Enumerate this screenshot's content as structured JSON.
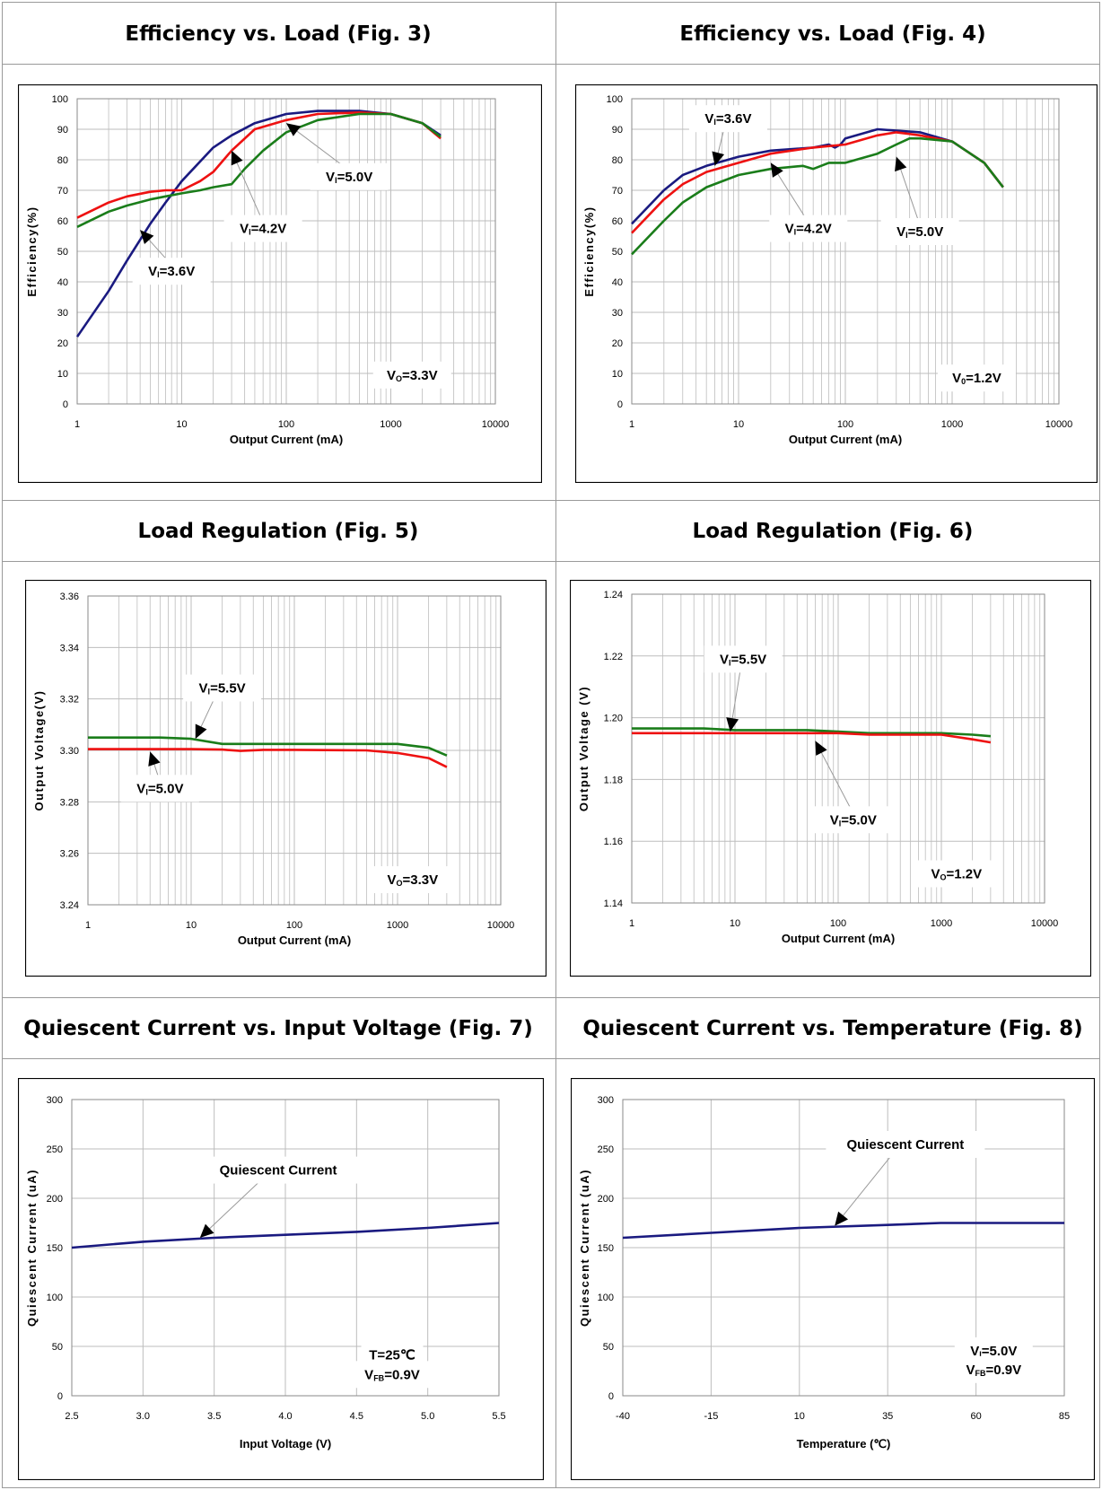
{
  "panels": [
    {
      "title": "Efficiency vs. Load (Fig. 3)"
    },
    {
      "title": "Efficiency vs. Load (Fig. 4)"
    },
    {
      "title": "Load Regulation (Fig. 5)"
    },
    {
      "title": "Load Regulation (Fig. 6)"
    },
    {
      "title": "Quiescent Current vs. Input Voltage (Fig. 7)"
    },
    {
      "title": "Quiescent Current vs. Temperature (Fig. 8)"
    }
  ],
  "colors": {
    "blue": "#1a1a80",
    "red": "#ee1111",
    "green": "#1a7d1a",
    "grid": "#bdbdbd"
  },
  "chart_data": [
    {
      "type": "line",
      "x_scale": "log",
      "xlabel": "Output Current (mA)",
      "ylabel": "Efficiency(%)",
      "xlim": [
        1,
        10000
      ],
      "ylim": [
        0,
        100
      ],
      "xticks": [
        1,
        10,
        100,
        1000,
        10000
      ],
      "xticklabels": [
        "1",
        "10",
        "100",
        "1000",
        "10000"
      ],
      "yticks": [
        0,
        10,
        20,
        30,
        40,
        50,
        60,
        70,
        80,
        90,
        100
      ],
      "yticklabels": [
        "0",
        "10",
        "20",
        "30",
        "40",
        "50",
        "60",
        "70",
        "80",
        "90",
        "100"
      ],
      "grid": true,
      "series": [
        {
          "color": "blue",
          "points": [
            [
              1,
              22
            ],
            [
              2,
              37
            ],
            [
              3,
              47
            ],
            [
              5,
              59
            ],
            [
              7,
              66
            ],
            [
              10,
              73
            ],
            [
              20,
              84
            ],
            [
              30,
              88
            ],
            [
              50,
              92
            ],
            [
              100,
              95
            ],
            [
              200,
              96
            ],
            [
              500,
              96
            ],
            [
              1000,
              95
            ],
            [
              2000,
              92
            ],
            [
              3000,
              88
            ]
          ]
        },
        {
          "color": "red",
          "points": [
            [
              1,
              61
            ],
            [
              2,
              66
            ],
            [
              3,
              68
            ],
            [
              5,
              69.5
            ],
            [
              7,
              70
            ],
            [
              10,
              70
            ],
            [
              15,
              73
            ],
            [
              20,
              76
            ],
            [
              30,
              83
            ],
            [
              50,
              90
            ],
            [
              100,
              93
            ],
            [
              200,
              95
            ],
            [
              500,
              95.5
            ],
            [
              1000,
              95
            ],
            [
              2000,
              92
            ],
            [
              3000,
              87
            ]
          ]
        },
        {
          "color": "green",
          "points": [
            [
              1,
              58
            ],
            [
              2,
              63
            ],
            [
              3,
              65
            ],
            [
              5,
              67
            ],
            [
              7,
              68
            ],
            [
              10,
              69
            ],
            [
              15,
              70
            ],
            [
              20,
              71
            ],
            [
              30,
              72
            ],
            [
              40,
              77
            ],
            [
              60,
              83
            ],
            [
              100,
              89
            ],
            [
              200,
              93
            ],
            [
              500,
              95
            ],
            [
              1000,
              95
            ],
            [
              2000,
              92
            ],
            [
              3000,
              87.5
            ]
          ]
        }
      ],
      "annotations": [
        {
          "text": "VI=5.0V",
          "x": 400,
          "y": 73,
          "ax": 100,
          "ay": 92
        },
        {
          "text": "VI=4.2V",
          "x": 60,
          "y": 56,
          "ax": 30,
          "ay": 83
        },
        {
          "text": "VI=3.6V",
          "x": 8,
          "y": 42,
          "ax": 4,
          "ay": 57
        },
        {
          "text": "VO=3.3V",
          "x": 1600,
          "y": 8,
          "box": true
        }
      ]
    },
    {
      "type": "line",
      "x_scale": "log",
      "xlabel": "Output Current (mA)",
      "ylabel": "Efficiency(%)",
      "xlim": [
        1,
        10000
      ],
      "ylim": [
        0,
        100
      ],
      "xticks": [
        1,
        10,
        100,
        1000,
        10000
      ],
      "xticklabels": [
        "1",
        "10",
        "100",
        "1000",
        "10000"
      ],
      "yticks": [
        0,
        10,
        20,
        30,
        40,
        50,
        60,
        70,
        80,
        90,
        100
      ],
      "yticklabels": [
        "0",
        "10",
        "20",
        "30",
        "40",
        "50",
        "60",
        "70",
        "80",
        "90",
        "100"
      ],
      "grid": true,
      "series": [
        {
          "color": "blue",
          "points": [
            [
              1,
              59
            ],
            [
              2,
              70
            ],
            [
              3,
              75
            ],
            [
              5,
              78
            ],
            [
              10,
              81
            ],
            [
              20,
              83
            ],
            [
              50,
              84
            ],
            [
              70,
              85
            ],
            [
              80,
              84
            ],
            [
              90,
              85
            ],
            [
              100,
              87
            ],
            [
              200,
              90
            ],
            [
              500,
              89
            ],
            [
              1000,
              86
            ],
            [
              2000,
              79
            ],
            [
              3000,
              71
            ]
          ]
        },
        {
          "color": "red",
          "points": [
            [
              1,
              56
            ],
            [
              2,
              67
            ],
            [
              3,
              72
            ],
            [
              5,
              76
            ],
            [
              10,
              79
            ],
            [
              20,
              82
            ],
            [
              50,
              84
            ],
            [
              100,
              85
            ],
            [
              200,
              88
            ],
            [
              300,
              89
            ],
            [
              500,
              88
            ],
            [
              1000,
              86
            ],
            [
              2000,
              79
            ],
            [
              3000,
              71
            ]
          ]
        },
        {
          "color": "green",
          "points": [
            [
              1,
              49
            ],
            [
              2,
              60
            ],
            [
              3,
              66
            ],
            [
              5,
              71
            ],
            [
              10,
              75
            ],
            [
              20,
              77
            ],
            [
              40,
              78
            ],
            [
              50,
              77
            ],
            [
              70,
              79
            ],
            [
              100,
              79
            ],
            [
              200,
              82
            ],
            [
              300,
              85
            ],
            [
              400,
              87
            ],
            [
              500,
              87
            ],
            [
              1000,
              86
            ],
            [
              2000,
              79
            ],
            [
              3000,
              71
            ]
          ]
        }
      ],
      "annotations": [
        {
          "text": "VI=3.6V",
          "x": 8,
          "y": 92,
          "ax": 6,
          "ay": 78
        },
        {
          "text": "VI=4.2V",
          "x": 45,
          "y": 56,
          "ax": 20,
          "ay": 79
        },
        {
          "text": "VI=5.0V",
          "x": 500,
          "y": 55,
          "ax": 300,
          "ay": 81
        },
        {
          "text": "V0=1.2V",
          "x": 1700,
          "y": 7,
          "box": true
        }
      ]
    },
    {
      "type": "line",
      "x_scale": "log",
      "xlabel": "Output Current (mA)",
      "ylabel": "Output Voltage(V)",
      "xlim": [
        1,
        10000
      ],
      "ylim": [
        3.24,
        3.36
      ],
      "xticks": [
        1,
        10,
        100,
        1000,
        10000
      ],
      "xticklabels": [
        "1",
        "10",
        "100",
        "1000",
        "10000"
      ],
      "yticks": [
        3.24,
        3.26,
        3.28,
        3.3,
        3.32,
        3.34,
        3.36
      ],
      "yticklabels": [
        "3.24",
        "3.26",
        "3.28",
        "3.30",
        "3.32",
        "3.34",
        "3.36"
      ],
      "grid": true,
      "series": [
        {
          "color": "green",
          "points": [
            [
              1,
              3.305
            ],
            [
              5,
              3.305
            ],
            [
              10,
              3.3045
            ],
            [
              20,
              3.3025
            ],
            [
              30,
              3.3025
            ],
            [
              100,
              3.3025
            ],
            [
              500,
              3.3025
            ],
            [
              1000,
              3.3025
            ],
            [
              2000,
              3.301
            ],
            [
              3000,
              3.298
            ]
          ]
        },
        {
          "color": "red",
          "points": [
            [
              1,
              3.3005
            ],
            [
              10,
              3.3005
            ],
            [
              20,
              3.3003
            ],
            [
              30,
              3.2998
            ],
            [
              50,
              3.3002
            ],
            [
              100,
              3.3002
            ],
            [
              500,
              3.3
            ],
            [
              1000,
              3.299
            ],
            [
              2000,
              3.297
            ],
            [
              3000,
              3.2935
            ]
          ]
        }
      ],
      "annotations": [
        {
          "text": "VI=5.5V",
          "x": 20,
          "y": 3.3225,
          "ax": 11,
          "ay": 3.3045
        },
        {
          "text": "VI=5.0V",
          "x": 5,
          "y": 3.2835,
          "ax": 4,
          "ay": 3.2995
        },
        {
          "text": "VO=3.3V",
          "x": 1400,
          "y": 3.248,
          "box": true
        }
      ]
    },
    {
      "type": "line",
      "x_scale": "log",
      "xlabel": "Output Current (mA)",
      "ylabel": "Output Voltage (V)",
      "xlim": [
        1,
        10000
      ],
      "ylim": [
        1.14,
        1.24
      ],
      "xticks": [
        1,
        10,
        100,
        1000,
        10000
      ],
      "xticklabels": [
        "1",
        "10",
        "100",
        "1000",
        "10000"
      ],
      "yticks": [
        1.14,
        1.16,
        1.18,
        1.2,
        1.22,
        1.24
      ],
      "yticklabels": [
        "1.14",
        "1.16",
        "1.18",
        "1.20",
        "1.22",
        "1.24"
      ],
      "grid": true,
      "series": [
        {
          "color": "green",
          "points": [
            [
              1,
              1.1965
            ],
            [
              5,
              1.1965
            ],
            [
              10,
              1.196
            ],
            [
              50,
              1.196
            ],
            [
              100,
              1.1955
            ],
            [
              200,
              1.195
            ],
            [
              1000,
              1.195
            ],
            [
              2000,
              1.1945
            ],
            [
              3000,
              1.194
            ]
          ]
        },
        {
          "color": "red",
          "points": [
            [
              1,
              1.195
            ],
            [
              10,
              1.195
            ],
            [
              100,
              1.195
            ],
            [
              200,
              1.1945
            ],
            [
              1000,
              1.1945
            ],
            [
              2000,
              1.193
            ],
            [
              3000,
              1.192
            ]
          ]
        }
      ],
      "annotations": [
        {
          "text": "VI=5.5V",
          "x": 12,
          "y": 1.2175,
          "ax": 9,
          "ay": 1.1955
        },
        {
          "text": "VI=5.0V",
          "x": 140,
          "y": 1.1655,
          "ax": 60,
          "ay": 1.1925
        },
        {
          "text": "VO=1.2V",
          "x": 1400,
          "y": 1.148,
          "box": true
        }
      ]
    },
    {
      "type": "line",
      "x_scale": "linear",
      "xlabel": "Input Voltage (V)",
      "ylabel": "Quiescent Current (uA)",
      "xlim": [
        2.5,
        5.5
      ],
      "ylim": [
        0,
        300
      ],
      "xticks": [
        2.5,
        3.0,
        3.5,
        4.0,
        4.5,
        5.0,
        5.5
      ],
      "xticklabels": [
        "2.5",
        "3.0",
        "3.5",
        "4.0",
        "4.5",
        "5.0",
        "5.5"
      ],
      "yticks": [
        0,
        50,
        100,
        150,
        200,
        250,
        300
      ],
      "yticklabels": [
        "0",
        "50",
        "100",
        "150",
        "200",
        "250",
        "300"
      ],
      "grid": true,
      "series": [
        {
          "name": "Quiescent Current",
          "color": "blue",
          "points": [
            [
              2.5,
              150
            ],
            [
              3.0,
              156
            ],
            [
              3.5,
              160
            ],
            [
              4.0,
              163
            ],
            [
              4.5,
              166
            ],
            [
              5.0,
              170
            ],
            [
              5.5,
              175
            ]
          ]
        }
      ],
      "annotations": [
        {
          "text": "Quiescent Current",
          "x": 3.95,
          "y": 224,
          "ax": 3.4,
          "ay": 160
        },
        {
          "text": "T=25℃",
          "x": 4.75,
          "y": 37,
          "box": true
        },
        {
          "text": "VFB=0.9V",
          "x": 4.75,
          "y": 17,
          "box": false
        }
      ]
    },
    {
      "type": "line",
      "x_scale": "linear",
      "xlabel": "Temperature (℃)",
      "ylabel": "Quiescent Current (uA)",
      "xlim": [
        -40,
        85
      ],
      "ylim": [
        0,
        300
      ],
      "xticks": [
        -40,
        -15,
        10,
        35,
        60,
        85
      ],
      "xticklabels": [
        "-40",
        "-15",
        "10",
        "35",
        "60",
        "85"
      ],
      "yticks": [
        0,
        50,
        100,
        150,
        200,
        250,
        300
      ],
      "yticklabels": [
        "0",
        "50",
        "100",
        "150",
        "200",
        "250",
        "300"
      ],
      "grid": true,
      "series": [
        {
          "name": "Quiescent Current",
          "color": "blue",
          "points": [
            [
              -40,
              160
            ],
            [
              -15,
              165
            ],
            [
              10,
              170
            ],
            [
              35,
              173
            ],
            [
              50,
              175
            ],
            [
              85,
              175
            ]
          ]
        }
      ],
      "annotations": [
        {
          "text": "Quiescent Current",
          "x": 40,
          "y": 250,
          "ax": 20,
          "ay": 172
        },
        {
          "text": "VI=5.0V",
          "x": 65,
          "y": 41,
          "box": true
        },
        {
          "text": "VFB=0.9V",
          "x": 65,
          "y": 22,
          "box": false
        }
      ]
    }
  ]
}
